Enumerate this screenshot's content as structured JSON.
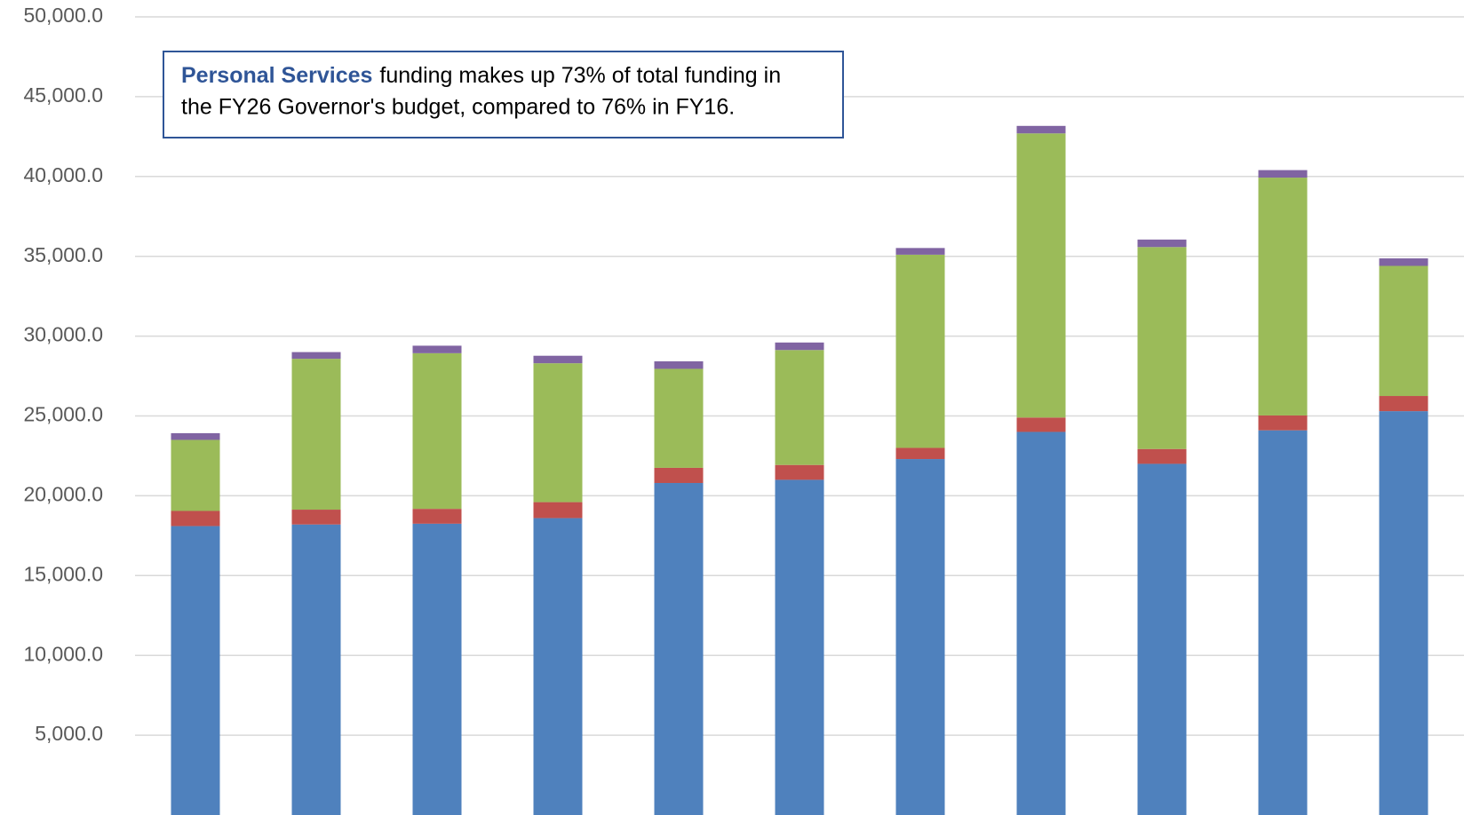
{
  "chart_data": {
    "type": "stacked_bar",
    "annotation": {
      "highlight": "Personal Services",
      "line1": "funding makes up 73% of total funding in",
      "line2": "the FY26 Governor's budget, compared to 76% in FY16."
    },
    "categories": [
      null,
      null,
      null,
      null,
      null,
      null,
      null,
      null,
      null,
      null,
      null
    ],
    "series": [
      {
        "color": "#4f81bd",
        "values": [
          18100,
          18200,
          18250,
          18600,
          20800,
          21000,
          22300,
          24000,
          22000,
          24100,
          25300
        ]
      },
      {
        "color": "#c0504d",
        "values": [
          950,
          930,
          930,
          1000,
          950,
          930,
          700,
          900,
          930,
          930,
          950
        ]
      },
      {
        "color": "#9bbb59",
        "values": [
          4450,
          9450,
          9750,
          8700,
          6200,
          7200,
          12100,
          17800,
          12650,
          14900,
          8150
        ]
      },
      {
        "color": "#8064a2",
        "values": [
          420,
          420,
          470,
          470,
          470,
          470,
          420,
          470,
          470,
          470,
          470
        ]
      }
    ],
    "ylim": [
      0,
      50000
    ],
    "yticks": [
      {
        "value": 5000,
        "label": "5,000.0"
      },
      {
        "value": 10000,
        "label": "10,000.0"
      },
      {
        "value": 15000,
        "label": "15,000.0"
      },
      {
        "value": 20000,
        "label": "20,000.0"
      },
      {
        "value": 25000,
        "label": "25,000.0"
      },
      {
        "value": 30000,
        "label": "30,000.0"
      },
      {
        "value": 35000,
        "label": "35,000.0"
      },
      {
        "value": 40000,
        "label": "40,000.0"
      },
      {
        "value": 45000,
        "label": "45,000.0"
      },
      {
        "value": 50000,
        "label": "50,000.0"
      }
    ],
    "grid": true
  }
}
